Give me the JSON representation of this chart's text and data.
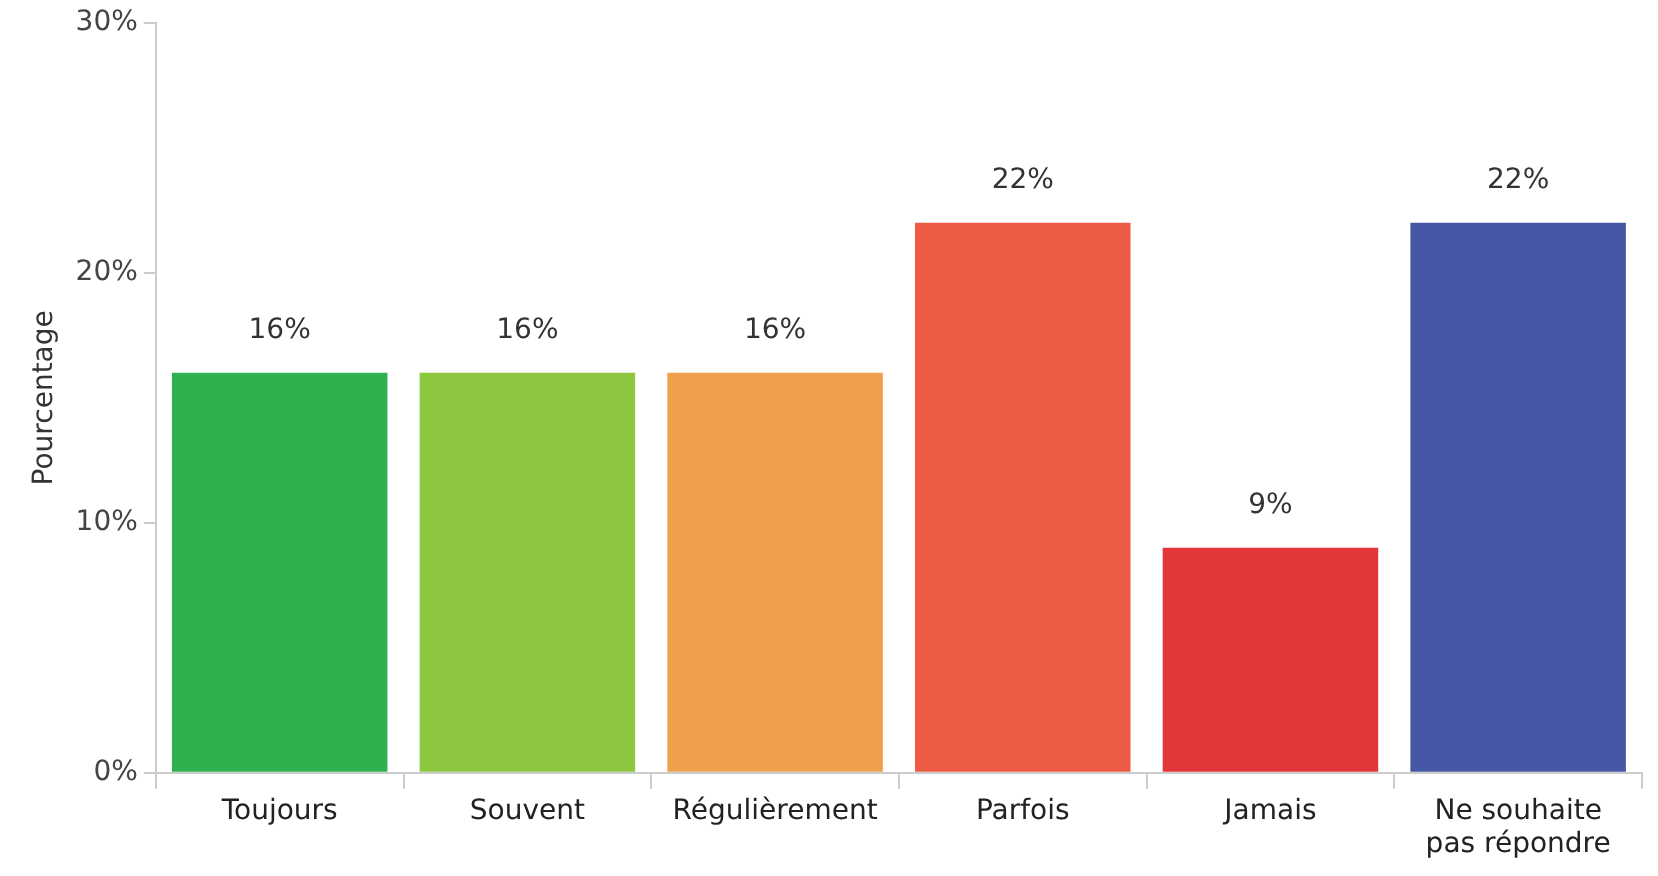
{
  "chart_data": {
    "type": "bar",
    "ylabel": "Pourcentage",
    "categories": [
      "Toujours",
      "Souvent",
      "Régulièrement",
      "Parfois",
      "Jamais",
      "Ne souhaite pas répondre"
    ],
    "values": [
      16,
      16,
      16,
      22,
      9,
      22
    ],
    "value_labels": [
      "16%",
      "16%",
      "16%",
      "22%",
      "9%",
      "22%"
    ],
    "colors": [
      "#2eb24f",
      "#8dc63f",
      "#eea04c",
      "#ee5b45",
      "#e2363a",
      "#4657a5"
    ],
    "ylim": [
      0,
      30
    ],
    "yticks": [
      {
        "value": 0,
        "label": "0%"
      },
      {
        "value": 10,
        "label": "10%"
      },
      {
        "value": 20,
        "label": "20%"
      },
      {
        "value": 30,
        "label": "30%"
      }
    ],
    "grid": false,
    "legend": false
  }
}
